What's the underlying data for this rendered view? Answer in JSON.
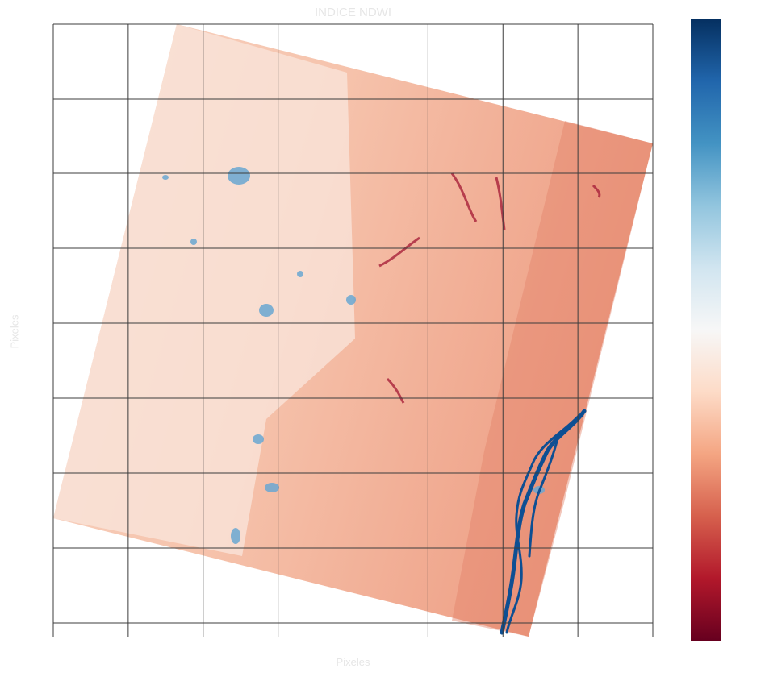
{
  "chart_data": {
    "type": "heatmap",
    "title": "INDICE NDWI",
    "xlabel": "Pixeles",
    "ylabel": "Pixeles",
    "grid": true,
    "grid_color": "#3c3c3c",
    "colormap": "RdBu",
    "colormap_stops": [
      "#67001f",
      "#b2182b",
      "#d6604d",
      "#f4a582",
      "#fddbc7",
      "#f7f7f7",
      "#d1e5f0",
      "#92c5de",
      "#4393c3",
      "#2166ac",
      "#053061"
    ],
    "colorbar_position": "right",
    "colorbar_ticks": [],
    "background_color": "#ffffff",
    "footprint_color": "#f4b59c",
    "water_color": "#0d4f93"
  }
}
